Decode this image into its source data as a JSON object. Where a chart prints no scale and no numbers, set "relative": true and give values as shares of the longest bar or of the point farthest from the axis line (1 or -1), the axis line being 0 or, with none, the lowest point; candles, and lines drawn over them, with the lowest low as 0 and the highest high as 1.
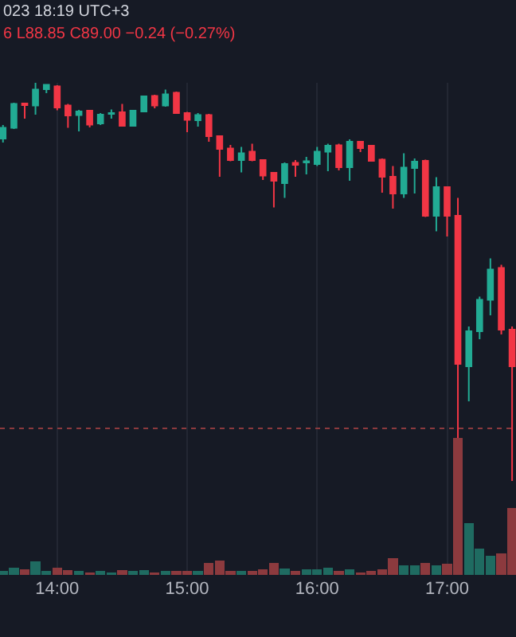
{
  "chart_data": [
    {
      "type": "candlestick",
      "relative": true,
      "annotations": [
        "023 18:19 UTC+3",
        "6 L88.85 C89.00 −0.24 (−0.27%)"
      ],
      "x": [
        13.583,
        13.667,
        13.75,
        13.833,
        13.917,
        14,
        14.083,
        14.167,
        14.25,
        14.333,
        14.417,
        14.5,
        14.583,
        14.667,
        14.75,
        14.833,
        14.917,
        15,
        15.083,
        15.167,
        15.25,
        15.333,
        15.417,
        15.5,
        15.583,
        15.667,
        15.75,
        15.833,
        15.917,
        16,
        16.083,
        16.167,
        16.25,
        16.333,
        16.417,
        16.5,
        16.583,
        16.667,
        16.75,
        16.833,
        16.917,
        17,
        17.083,
        17.167,
        17.25,
        17.333,
        17.417,
        17.5
      ],
      "ohlc": [
        [
          0.86,
          0.894,
          0.85,
          0.887
        ],
        [
          0.887,
          0.95,
          0.884,
          0.947
        ],
        [
          0.948,
          0.95,
          0.91,
          0.944
        ],
        [
          0.943,
          1,
          0.92,
          0.983
        ],
        [
          0.984,
          0.996,
          0.974,
          0.995
        ],
        [
          0.991,
          0.994,
          0.931,
          0.938
        ],
        [
          0.943,
          0.947,
          0.887,
          0.918
        ],
        [
          0.919,
          0.932,
          0.878,
          0.928
        ],
        [
          0.93,
          0.932,
          0.888,
          0.895
        ],
        [
          0.898,
          0.924,
          0.894,
          0.92
        ],
        [
          0.922,
          0.933,
          0.91,
          0.924
        ],
        [
          0.926,
          0.947,
          0.89,
          0.892
        ],
        [
          0.892,
          0.932,
          0.89,
          0.93
        ],
        [
          0.928,
          0.968,
          0.926,
          0.966
        ],
        [
          0.967,
          0.97,
          0.936,
          0.943
        ],
        [
          0.943,
          0.983,
          0.94,
          0.971
        ],
        [
          0.975,
          0.978,
          0.922,
          0.924
        ],
        [
          0.924,
          0.927,
          0.876,
          0.907
        ],
        [
          0.906,
          0.924,
          0.89,
          0.919
        ],
        [
          0.919,
          0.922,
          0.852,
          0.866
        ],
        [
          0.866,
          0.868,
          0.764,
          0.834
        ],
        [
          0.835,
          0.844,
          0.803,
          0.806
        ],
        [
          0.806,
          0.839,
          0.775,
          0.823
        ],
        [
          0.827,
          0.847,
          0.803,
          0.806
        ],
        [
          0.806,
          0.808,
          0.756,
          0.767
        ],
        [
          0.774,
          0.776,
          0.687,
          0.754
        ],
        [
          0.748,
          0.8,
          0.711,
          0.796
        ],
        [
          0.799,
          0.806,
          0.764,
          0.794
        ],
        [
          0.8,
          0.814,
          0.77,
          0.803
        ],
        [
          0.796,
          0.839,
          0.791,
          0.827
        ],
        [
          0.827,
          0.847,
          0.778,
          0.842
        ],
        [
          0.843,
          0.847,
          0.78,
          0.788
        ],
        [
          0.788,
          0.858,
          0.754,
          0.852
        ],
        [
          0.852,
          0.853,
          0.826,
          0.836
        ],
        [
          0.842,
          0.844,
          0.802,
          0.804
        ],
        [
          0.807,
          0.81,
          0.724,
          0.764
        ],
        [
          0.764,
          0.791,
          0.684,
          0.722
        ],
        [
          0.722,
          0.823,
          0.711,
          0.787
        ],
        [
          0.786,
          0.81,
          0.722,
          0.802
        ],
        [
          0.804,
          0.807,
          0.663,
          0.666
        ],
        [
          0.666,
          0.763,
          0.627,
          0.738
        ],
        [
          0.738,
          0.74,
          0.614,
          0.666
        ],
        [
          0.666,
          0.711,
          0.108,
          0.294
        ],
        [
          0.288,
          0.388,
          0.2,
          0.376
        ],
        [
          0.376,
          0.463,
          0.356,
          0.455
        ],
        [
          0.455,
          0.559,
          0.416,
          0.531
        ],
        [
          0.535,
          0.543,
          0.368,
          0.38
        ],
        [
          0.38,
          0.388,
          0,
          0.288
        ]
      ],
      "colors": [
        "#22ab94",
        "#22ab94",
        "#f23645",
        "#22ab94",
        "#22ab94",
        "#f23645",
        "#f23645",
        "#22ab94",
        "#f23645",
        "#22ab94",
        "#22ab94",
        "#f23645",
        "#22ab94",
        "#22ab94",
        "#f23645",
        "#22ab94",
        "#f23645",
        "#f23645",
        "#22ab94",
        "#f23645",
        "#f23645",
        "#f23645",
        "#22ab94",
        "#f23645",
        "#f23645",
        "#f23645",
        "#22ab94",
        "#f23645",
        "#22ab94",
        "#22ab94",
        "#22ab94",
        "#f23645",
        "#22ab94",
        "#f23645",
        "#f23645",
        "#f23645",
        "#f23645",
        "#22ab94",
        "#22ab94",
        "#f23645",
        "#22ab94",
        "#f23645",
        "#f23645",
        "#22ab94",
        "#22ab94",
        "#22ab94",
        "#f23645",
        "#f23645"
      ],
      "xlim": [
        13.56,
        17.53
      ],
      "xticks": [
        {
          "value": 14,
          "label": null
        },
        {
          "value": 15,
          "label": null
        },
        {
          "value": 16,
          "label": null
        },
        {
          "value": 17,
          "label": null
        }
      ],
      "tick_labels": false,
      "grid": "x",
      "ref_lines": [
        {
          "axis": "y",
          "value": 0.132,
          "color": "#8c3a3e",
          "line_style": "dotted"
        }
      ]
    },
    {
      "type": "bar",
      "relative": true,
      "x": [
        13.583,
        13.667,
        13.75,
        13.833,
        13.917,
        14,
        14.083,
        14.167,
        14.25,
        14.333,
        14.417,
        14.5,
        14.583,
        14.667,
        14.75,
        14.833,
        14.917,
        15,
        15.083,
        15.167,
        15.25,
        15.333,
        15.417,
        15.5,
        15.583,
        15.667,
        15.75,
        15.833,
        15.917,
        16,
        16.083,
        16.167,
        16.25,
        16.333,
        16.417,
        16.5,
        16.583,
        16.667,
        16.75,
        16.833,
        16.917,
        17,
        17.083,
        17.167,
        17.25,
        17.333,
        17.417,
        17.5
      ],
      "values": [
        0.03,
        0.05,
        0.04,
        0.1,
        0.03,
        0.05,
        0.035,
        0.03,
        0.02,
        0.03,
        0.02,
        0.035,
        0.03,
        0.035,
        0.02,
        0.03,
        0.03,
        0.03,
        0.03,
        0.085,
        0.105,
        0.03,
        0.03,
        0.03,
        0.04,
        0.085,
        0.045,
        0.03,
        0.04,
        0.04,
        0.05,
        0.03,
        0.04,
        0.02,
        0.03,
        0.04,
        0.12,
        0.07,
        0.07,
        0.09,
        0.07,
        0.08,
        1,
        0.38,
        0.19,
        0.14,
        0.155,
        0.49
      ],
      "colors": [
        "#1f6b61",
        "#1f6b61",
        "#8c3a3e",
        "#1f6b61",
        "#1f6b61",
        "#8c3a3e",
        "#8c3a3e",
        "#1f6b61",
        "#8c3a3e",
        "#1f6b61",
        "#1f6b61",
        "#8c3a3e",
        "#1f6b61",
        "#1f6b61",
        "#8c3a3e",
        "#1f6b61",
        "#8c3a3e",
        "#8c3a3e",
        "#1f6b61",
        "#8c3a3e",
        "#8c3a3e",
        "#8c3a3e",
        "#1f6b61",
        "#8c3a3e",
        "#8c3a3e",
        "#8c3a3e",
        "#1f6b61",
        "#8c3a3e",
        "#1f6b61",
        "#1f6b61",
        "#1f6b61",
        "#8c3a3e",
        "#1f6b61",
        "#8c3a3e",
        "#8c3a3e",
        "#8c3a3e",
        "#8c3a3e",
        "#1f6b61",
        "#1f6b61",
        "#8c3a3e",
        "#1f6b61",
        "#8c3a3e",
        "#8c3a3e",
        "#1f6b61",
        "#1f6b61",
        "#1f6b61",
        "#8c3a3e",
        "#8c3a3e"
      ],
      "xlim": [
        13.56,
        17.53
      ],
      "xticks": [
        {
          "value": 14,
          "label": "14:00"
        },
        {
          "value": 15,
          "label": "15:00"
        },
        {
          "value": 16,
          "label": "16:00"
        },
        {
          "value": 17,
          "label": "17:00"
        }
      ],
      "tick_labels": "x",
      "grid": "x"
    }
  ]
}
